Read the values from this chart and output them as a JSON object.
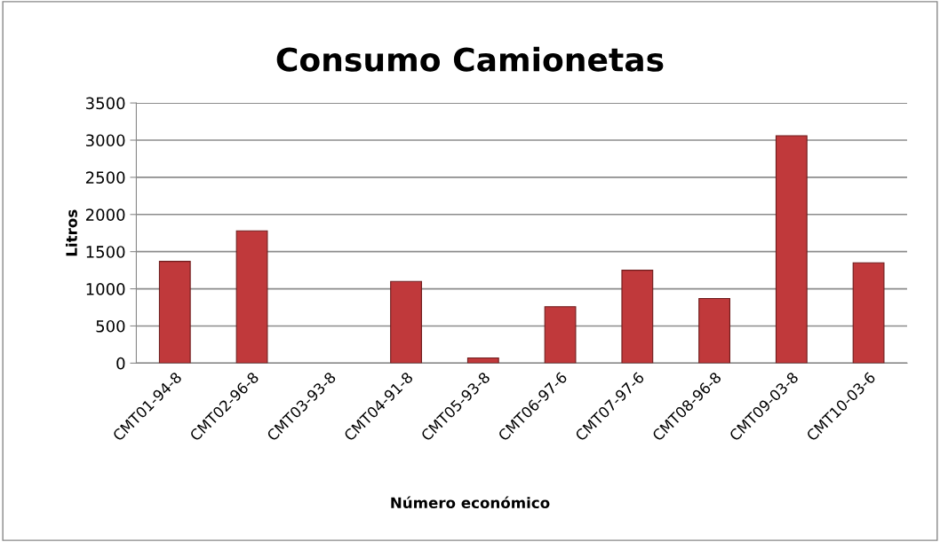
{
  "chart_data": {
    "type": "bar",
    "title": "Consumo Camionetas",
    "xlabel": "Número económico",
    "ylabel": "Litros",
    "categories": [
      "CMT01-94-8",
      "CMT02-96-8",
      "CMT03-93-8",
      "CMT04-91-8",
      "CMT05-93-8",
      "CMT06-97-6",
      "CMT07-97-6",
      "CMT08-96-8",
      "CMT09-03-8",
      "CMT10-03-6"
    ],
    "values": [
      1370,
      1780,
      0,
      1100,
      70,
      760,
      1250,
      870,
      3060,
      1350
    ],
    "color": "#c0393b",
    "ylim": [
      0,
      3500
    ],
    "yticks": [
      0,
      500,
      1000,
      1500,
      2000,
      2500,
      3000,
      3500
    ],
    "grid": "y",
    "legend": false
  }
}
